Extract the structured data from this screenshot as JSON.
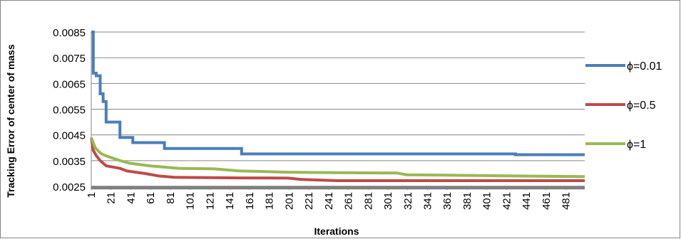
{
  "chart_data": {
    "type": "line",
    "title": "",
    "xlabel": "Iterations",
    "ylabel": "Tracking Error of center of mass",
    "ylim": [
      0.0025,
      0.0085
    ],
    "yticks": [
      "0.0085",
      "0.0075",
      "0.0065",
      "0.0055",
      "0.0045",
      "0.0035",
      "0.0025"
    ],
    "yticks_values": [
      0.0085,
      0.0075,
      0.0065,
      0.0055,
      0.0045,
      0.0035,
      0.0025
    ],
    "xlim": [
      1,
      500
    ],
    "xticks": [
      "1",
      "21",
      "41",
      "61",
      "81",
      "101",
      "121",
      "141",
      "161",
      "181",
      "201",
      "221",
      "241",
      "261",
      "281",
      "301",
      "321",
      "341",
      "361",
      "381",
      "401",
      "421",
      "441",
      "461",
      "481"
    ],
    "xticks_values": [
      1,
      21,
      41,
      61,
      81,
      101,
      121,
      141,
      161,
      181,
      201,
      221,
      241,
      261,
      281,
      301,
      321,
      341,
      361,
      381,
      401,
      421,
      441,
      461,
      481
    ],
    "grid": "horizontal",
    "legend_position": "right",
    "series": [
      {
        "name": "ϕ=0.01",
        "color": "#4a7ebb",
        "points": [
          [
            1,
            0.0085
          ],
          [
            3,
            0.0085
          ],
          [
            3,
            0.0069
          ],
          [
            6,
            0.0069
          ],
          [
            6,
            0.0068
          ],
          [
            10,
            0.0068
          ],
          [
            10,
            0.0061
          ],
          [
            13,
            0.0061
          ],
          [
            13,
            0.0058
          ],
          [
            16,
            0.0058
          ],
          [
            16,
            0.005
          ],
          [
            30,
            0.005
          ],
          [
            30,
            0.0044
          ],
          [
            43,
            0.0044
          ],
          [
            43,
            0.0042
          ],
          [
            75,
            0.0042
          ],
          [
            75,
            0.00397
          ],
          [
            153,
            0.00397
          ],
          [
            153,
            0.00376
          ],
          [
            430,
            0.00376
          ],
          [
            430,
            0.00373
          ],
          [
            500,
            0.00373
          ]
        ]
      },
      {
        "name": "ϕ=0.5",
        "color": "#be4b48",
        "points": [
          [
            1,
            0.0044
          ],
          [
            3,
            0.0039
          ],
          [
            6,
            0.0037
          ],
          [
            10,
            0.0035
          ],
          [
            16,
            0.0033
          ],
          [
            30,
            0.0032
          ],
          [
            37,
            0.0031
          ],
          [
            55,
            0.003
          ],
          [
            70,
            0.0029
          ],
          [
            85,
            0.00285
          ],
          [
            150,
            0.00283
          ],
          [
            200,
            0.00282
          ],
          [
            213,
            0.00277
          ],
          [
            250,
            0.00272
          ],
          [
            500,
            0.00272
          ]
        ]
      },
      {
        "name": "ϕ=1",
        "color": "#98b954",
        "points": [
          [
            1,
            0.0044
          ],
          [
            5,
            0.004
          ],
          [
            10,
            0.0038
          ],
          [
            15,
            0.0037
          ],
          [
            30,
            0.0035
          ],
          [
            40,
            0.0034
          ],
          [
            60,
            0.0033
          ],
          [
            90,
            0.0032
          ],
          [
            125,
            0.00318
          ],
          [
            150,
            0.0031
          ],
          [
            200,
            0.00305
          ],
          [
            250,
            0.00303
          ],
          [
            310,
            0.00302
          ],
          [
            320,
            0.00295
          ],
          [
            440,
            0.0029
          ],
          [
            500,
            0.00288
          ]
        ]
      },
      {
        "name": "",
        "color": "#7f7f7f",
        "points": [
          [
            1,
            0.00245
          ],
          [
            500,
            0.00245
          ]
        ]
      }
    ]
  }
}
